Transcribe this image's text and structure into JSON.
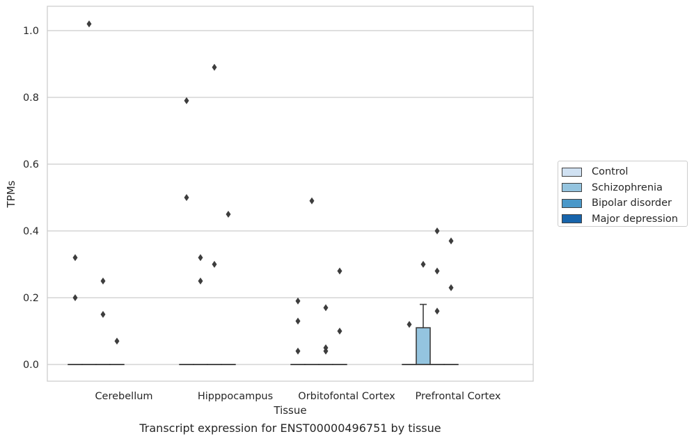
{
  "chart_data": {
    "type": "box",
    "title": "",
    "caption": "Transcript expression for ENST00000496751 by tissue",
    "xlabel": "Tissue",
    "ylabel": "TPMs",
    "ylim": [
      -0.05,
      1.07
    ],
    "yticks": [
      0.0,
      0.2,
      0.4,
      0.6,
      0.8,
      1.0
    ],
    "ytick_labels": [
      "0.0",
      "0.2",
      "0.4",
      "0.6",
      "0.8",
      "1.0"
    ],
    "grid": "horizontal",
    "legend_position": "right",
    "categories": [
      "Cerebellum",
      "Hipppocampus",
      "Orbitofontal Cortex",
      "Prefrontal Cortex"
    ],
    "series": [
      {
        "name": "Control",
        "color": "#d0e1f2",
        "boxes": [
          {
            "category": "Cerebellum",
            "q1": 0,
            "median": 0,
            "q3": 0,
            "whisker_low": 0,
            "whisker_high": 0,
            "outliers": [
              0.32,
              0.2
            ]
          },
          {
            "category": "Hipppocampus",
            "q1": 0,
            "median": 0,
            "q3": 0,
            "whisker_low": 0,
            "whisker_high": 0,
            "outliers": [
              0.79,
              0.5
            ]
          },
          {
            "category": "Orbitofontal Cortex",
            "q1": 0,
            "median": 0,
            "q3": 0,
            "whisker_low": 0,
            "whisker_high": 0,
            "outliers": [
              0.19,
              0.13,
              0.04
            ]
          },
          {
            "category": "Prefrontal Cortex",
            "q1": 0,
            "median": 0,
            "q3": 0,
            "whisker_low": 0,
            "whisker_high": 0,
            "outliers": [
              0.12
            ]
          }
        ]
      },
      {
        "name": "Schizophrenia",
        "color": "#94c4df",
        "boxes": [
          {
            "category": "Cerebellum",
            "q1": 0,
            "median": 0,
            "q3": 0,
            "whisker_low": 0,
            "whisker_high": 0,
            "outliers": [
              1.02
            ]
          },
          {
            "category": "Hipppocampus",
            "q1": 0,
            "median": 0,
            "q3": 0,
            "whisker_low": 0,
            "whisker_high": 0,
            "outliers": [
              0.32,
              0.25
            ]
          },
          {
            "category": "Orbitofontal Cortex",
            "q1": 0,
            "median": 0,
            "q3": 0,
            "whisker_low": 0,
            "whisker_high": 0,
            "outliers": [
              0.49
            ]
          },
          {
            "category": "Prefrontal Cortex",
            "q1": 0,
            "median": 0,
            "q3": 0.11,
            "whisker_low": 0,
            "whisker_high": 0.18,
            "outliers": [
              0.3
            ]
          }
        ]
      },
      {
        "name": "Bipolar disorder",
        "color": "#4a98c9",
        "boxes": [
          {
            "category": "Cerebellum",
            "q1": 0,
            "median": 0,
            "q3": 0,
            "whisker_low": 0,
            "whisker_high": 0,
            "outliers": [
              0.25,
              0.15
            ]
          },
          {
            "category": "Hipppocampus",
            "q1": 0,
            "median": 0,
            "q3": 0,
            "whisker_low": 0,
            "whisker_high": 0,
            "outliers": [
              0.89,
              0.3
            ]
          },
          {
            "category": "Orbitofontal Cortex",
            "q1": 0,
            "median": 0,
            "q3": 0,
            "whisker_low": 0,
            "whisker_high": 0,
            "outliers": [
              0.17,
              0.05,
              0.04
            ]
          },
          {
            "category": "Prefrontal Cortex",
            "q1": 0,
            "median": 0,
            "q3": 0,
            "whisker_low": 0,
            "whisker_high": 0,
            "outliers": [
              0.4,
              0.28,
              0.16
            ]
          }
        ]
      },
      {
        "name": "Major depression",
        "color": "#1764ab",
        "boxes": [
          {
            "category": "Cerebellum",
            "q1": 0,
            "median": 0,
            "q3": 0,
            "whisker_low": 0,
            "whisker_high": 0,
            "outliers": [
              0.07
            ]
          },
          {
            "category": "Hipppocampus",
            "q1": 0,
            "median": 0,
            "q3": 0,
            "whisker_low": 0,
            "whisker_high": 0,
            "outliers": [
              0.45
            ]
          },
          {
            "category": "Orbitofontal Cortex",
            "q1": 0,
            "median": 0,
            "q3": 0,
            "whisker_low": 0,
            "whisker_high": 0,
            "outliers": [
              0.28,
              0.1
            ]
          },
          {
            "category": "Prefrontal Cortex",
            "q1": 0,
            "median": 0,
            "q3": 0,
            "whisker_low": 0,
            "whisker_high": 0,
            "outliers": [
              0.37,
              0.23
            ]
          }
        ]
      }
    ]
  }
}
